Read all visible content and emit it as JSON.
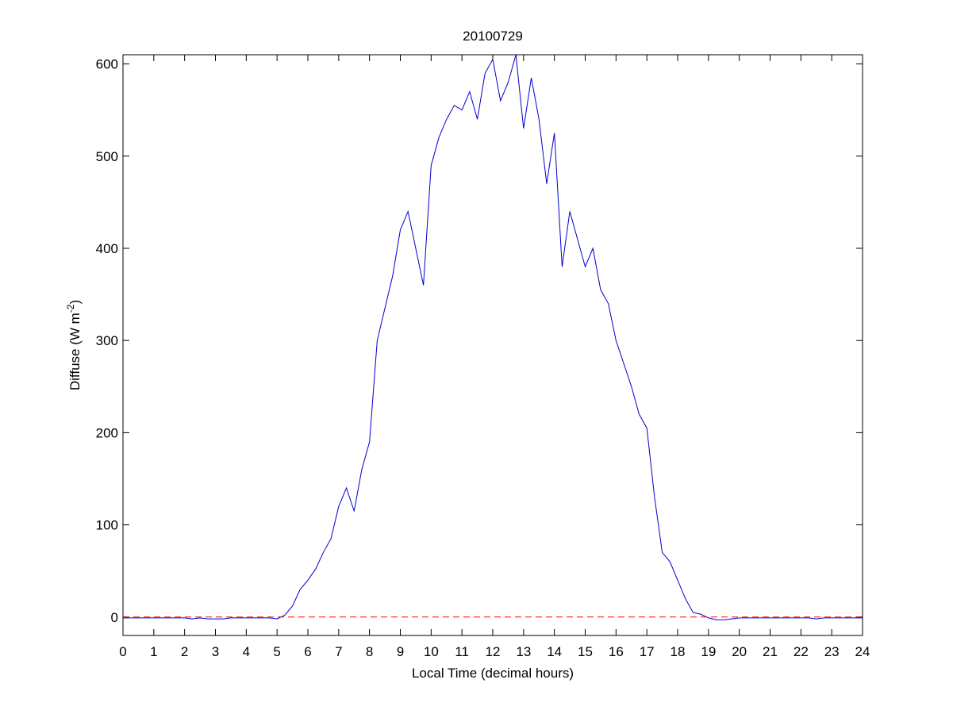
{
  "chart_data": {
    "type": "line",
    "title": "20100729",
    "xlabel": "Local Time (decimal hours)",
    "ylabel_parts": [
      "Diffuse (W m",
      "-2",
      ")"
    ],
    "x": [
      0,
      0.25,
      0.5,
      0.75,
      1,
      1.25,
      1.5,
      1.75,
      2,
      2.25,
      2.5,
      2.75,
      3,
      3.25,
      3.5,
      3.75,
      4,
      4.25,
      4.5,
      4.75,
      5,
      5.25,
      5.5,
      5.75,
      6,
      6.25,
      6.5,
      6.75,
      7,
      7.25,
      7.5,
      7.75,
      8,
      8.25,
      8.5,
      8.75,
      9,
      9.25,
      9.5,
      9.75,
      10,
      10.25,
      10.5,
      10.75,
      11,
      11.25,
      11.5,
      11.75,
      12,
      12.25,
      12.5,
      12.75,
      13,
      13.25,
      13.5,
      13.75,
      14,
      14.25,
      14.5,
      14.75,
      15,
      15.25,
      15.5,
      15.75,
      16,
      16.25,
      16.5,
      16.75,
      17,
      17.25,
      17.5,
      17.75,
      18,
      18.25,
      18.5,
      18.75,
      19,
      19.25,
      19.5,
      19.75,
      20,
      20.25,
      20.5,
      20.75,
      21,
      21.25,
      21.5,
      21.75,
      22,
      22.25,
      22.5,
      22.75,
      23,
      23.25,
      23.5,
      23.75,
      24
    ],
    "series": [
      {
        "color": "#0000cc",
        "values": [
          -1,
          -1,
          -1,
          -1,
          -1,
          -1,
          -1,
          -1,
          -1,
          -2,
          -1,
          -2,
          -2,
          -2,
          -1,
          -1,
          -1,
          -1,
          -1,
          -1,
          -2,
          2,
          12,
          30,
          40,
          52,
          70,
          85,
          120,
          140,
          115,
          160,
          190,
          300,
          335,
          370,
          420,
          440,
          400,
          360,
          490,
          520,
          540,
          555,
          550,
          570,
          540,
          590,
          605,
          560,
          580,
          610,
          530,
          585,
          540,
          470,
          525,
          380,
          440,
          410,
          380,
          400,
          355,
          340,
          300,
          275,
          250,
          220,
          205,
          130,
          70,
          60,
          40,
          20,
          5,
          3,
          -1,
          -3,
          -3,
          -2,
          -1,
          -1,
          -1,
          -1,
          -1,
          -1,
          -1,
          -1,
          -1,
          -1,
          -2,
          -1,
          -1,
          -1,
          -1,
          -1,
          -1
        ]
      }
    ],
    "reference_line": {
      "value": 0,
      "color": "#ff0000"
    },
    "xlim": [
      0,
      24
    ],
    "xticks": [
      0,
      1,
      2,
      3,
      4,
      5,
      6,
      7,
      8,
      9,
      10,
      11,
      12,
      13,
      14,
      15,
      16,
      17,
      18,
      19,
      20,
      21,
      22,
      23,
      24
    ],
    "ylim": [
      -20,
      610
    ],
    "yticks": [
      0,
      100,
      200,
      300,
      400,
      500,
      600
    ]
  }
}
